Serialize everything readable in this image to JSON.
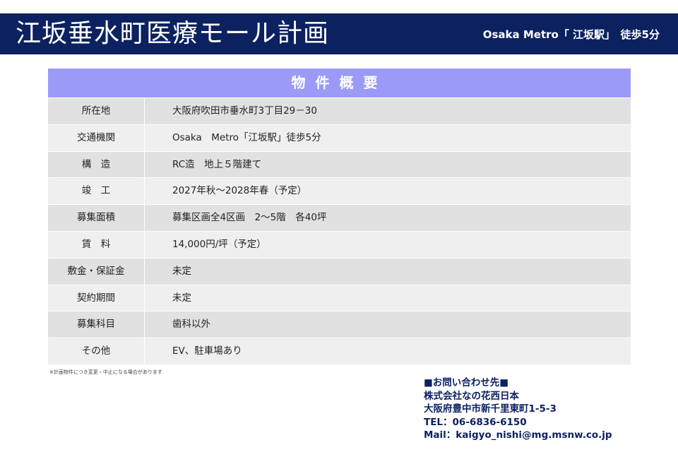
{
  "header": {
    "title": "江坂垂水町医療モール計画",
    "access": "Osaka Metro「 江坂駅」　徒歩5分"
  },
  "table": {
    "heading": "物件概要",
    "rows": [
      {
        "label": "所在地",
        "value": "大阪府吹田市垂水町3丁目29－30"
      },
      {
        "label": "交通機関",
        "value": "Osaka　Metro「江坂駅」徒歩5分"
      },
      {
        "label": "構　造",
        "value": "RC造　地上５階建て"
      },
      {
        "label": "竣　工",
        "value": "2027年秋～2028年春（予定）"
      },
      {
        "label": "募集面積",
        "value": "募集区画全4区画　2～5階　各40坪"
      },
      {
        "label": "賃　料",
        "value": "14,000円/坪（予定）"
      },
      {
        "label": "敷金・保証金",
        "value": "未定"
      },
      {
        "label": "契約期間",
        "value": "未定"
      },
      {
        "label": "募集科目",
        "value": "歯科以外"
      },
      {
        "label": "その他",
        "value": "EV、駐車場あり"
      }
    ]
  },
  "note": "※計画物件につき変更・中止になる場合があります",
  "contact": [
    "■お問い合わせ先■",
    "株式会社なの花西日本",
    "大阪府豊中市新千里東町1-5-3",
    "TEL：06-6836-6150",
    "Mail：kaigyo_nishi@mg.msnw.co.jp"
  ],
  "colors": {
    "band": "#0c2160",
    "table_header": "#9b9bf7",
    "contact_text": "#0c2160"
  }
}
